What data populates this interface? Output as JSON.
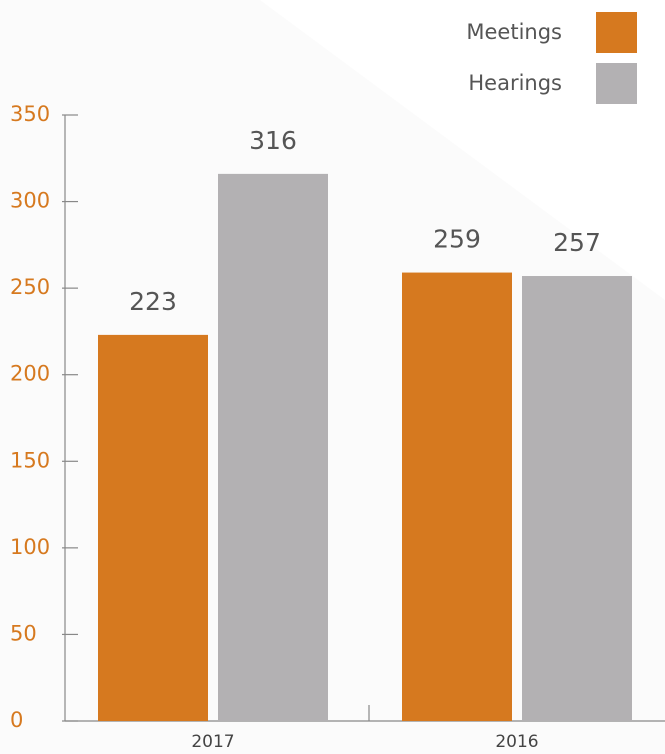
{
  "chart_data": {
    "type": "bar",
    "categories": [
      "2017",
      "2016"
    ],
    "series": [
      {
        "name": "Meetings",
        "color": "#d6791f",
        "values": [
          223,
          259
        ]
      },
      {
        "name": "Hearings",
        "color": "#b3b1b3",
        "values": [
          316,
          257
        ]
      }
    ],
    "ylim": [
      0,
      350
    ],
    "yticks": [
      0,
      50,
      100,
      150,
      200,
      250,
      300,
      350
    ],
    "legend": "top-right"
  }
}
